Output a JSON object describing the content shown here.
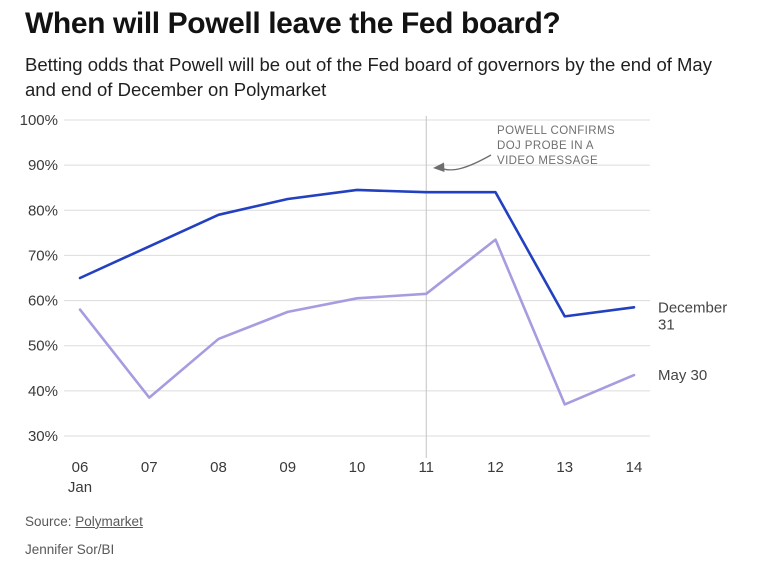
{
  "header": {
    "title": "When will Powell leave the Fed board?",
    "subtitle": "Betting odds that Powell will be out of the Fed board of governors by the end of May and end of December on Polymarket"
  },
  "chart_data": {
    "type": "line",
    "categories": [
      "06",
      "07",
      "08",
      "09",
      "10",
      "11",
      "12",
      "13",
      "14"
    ],
    "x_label_month": "Jan",
    "y_ticks": [
      "100%",
      "90%",
      "80%",
      "70%",
      "60%",
      "50%",
      "40%",
      "30%"
    ],
    "ylim": [
      30,
      100
    ],
    "grid": "horizontal",
    "legend_position": "right-of-line-ends",
    "series": [
      {
        "name": "December 31",
        "label_lines": [
          "December",
          "31"
        ],
        "color": "#2240bf",
        "values": [
          65,
          72,
          79,
          82.5,
          84.5,
          84,
          84,
          56.5,
          58.5
        ]
      },
      {
        "name": "May 30",
        "label_lines": [
          "May 30"
        ],
        "color": "#a89ce0",
        "values": [
          58,
          38.5,
          51.5,
          57.5,
          60.5,
          61.5,
          73.5,
          37,
          43.5
        ]
      }
    ],
    "annotation": {
      "lines": [
        "POWELL CONFIRMS",
        "DOJ PROBE IN A",
        "VIDEO MESSAGE"
      ],
      "x_index": 5
    }
  },
  "footer": {
    "source_prefix": "Source:",
    "source_link": "Polymarket",
    "credit": "Jennifer Sor/BI"
  }
}
